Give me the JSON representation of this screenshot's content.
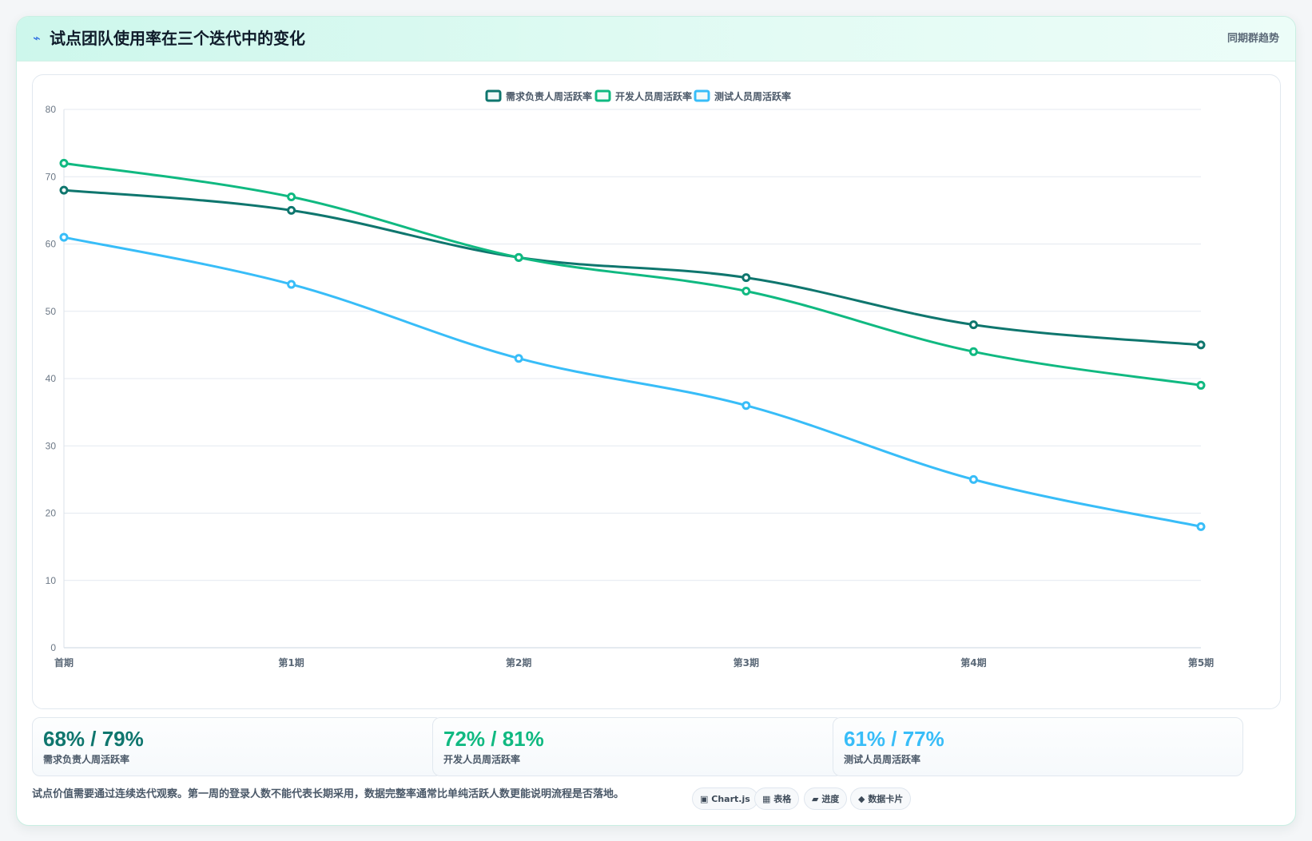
{
  "header": {
    "title_icon": "⌁",
    "title": "试点团队使用率在三个迭代中的变化",
    "right_label": "同期群趋势"
  },
  "chart_data": {
    "type": "line",
    "categories": [
      "首期",
      "第1期",
      "第2期",
      "第3期",
      "第4期",
      "第5期"
    ],
    "series": [
      {
        "name": "需求负责人周活跃率",
        "color": "#0f766e",
        "values": [
          68,
          65,
          58,
          55,
          48,
          45
        ]
      },
      {
        "name": "开发人员周活跃率",
        "color": "#10b981",
        "values": [
          72,
          67,
          58,
          53,
          44,
          39
        ]
      },
      {
        "name": "测试人员周活跃率",
        "color": "#38bdf8",
        "values": [
          61,
          54,
          43,
          36,
          25,
          18
        ]
      }
    ],
    "ylim": [
      0,
      80
    ],
    "yticks": [
      0,
      10,
      20,
      30,
      40,
      50,
      60,
      70,
      80
    ],
    "grid": true,
    "legend": "top-center"
  },
  "stats": [
    {
      "value": "68% / 79%",
      "label": "需求负责人周活跃率",
      "color": "#0f766e"
    },
    {
      "value": "72% / 81%",
      "label": "开发人员周活跃率",
      "color": "#10b981"
    },
    {
      "value": "61% / 77%",
      "label": "测试人员周活跃率",
      "color": "#38bdf8"
    }
  ],
  "footnote": "试点价值需要通过连续迭代观察。第一周的登录人数不能代表长期采用，数据完整率通常比单纯活跃人数更能说明流程是否落地。",
  "views": [
    {
      "icon": "▣",
      "label": "Chart.js"
    },
    {
      "icon": "▦",
      "label": "表格"
    },
    {
      "icon": "▰",
      "label": "进度"
    },
    {
      "icon": "◆",
      "label": "数据卡片"
    }
  ]
}
